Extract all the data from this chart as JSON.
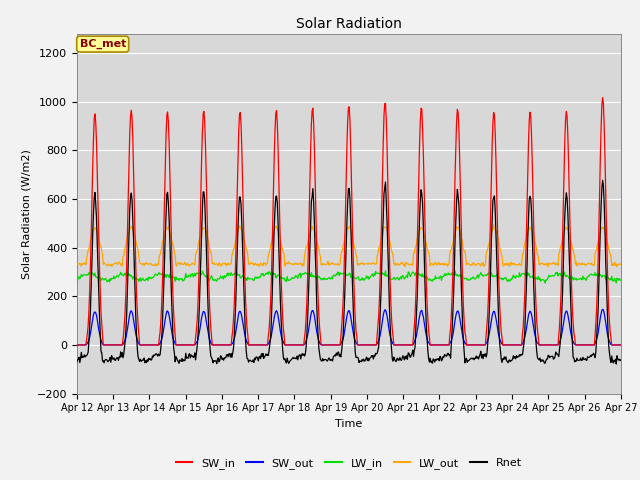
{
  "title": "Solar Radiation",
  "ylabel": "Solar Radiation (W/m2)",
  "xlabel": "Time",
  "ylim": [
    -200,
    1280
  ],
  "yticks": [
    -200,
    0,
    200,
    400,
    600,
    800,
    1000,
    1200
  ],
  "xtick_labels": [
    "Apr 12",
    "Apr 13",
    "Apr 14",
    "Apr 15",
    "Apr 16",
    "Apr 17",
    "Apr 18",
    "Apr 19",
    "Apr 20",
    "Apr 21",
    "Apr 22",
    "Apr 23",
    "Apr 24",
    "Apr 25",
    "Apr 26",
    "Apr 27"
  ],
  "plot_bg_color": "#d8d8d8",
  "fig_bg_color": "#f2f2f2",
  "grid_color": "#ffffff",
  "line_colors": {
    "SW_in": "#ff0000",
    "SW_out": "#0000ff",
    "LW_in": "#00dd00",
    "LW_out": "#ffa500",
    "Rnet": "#000000"
  },
  "legend_label_box": "BC_met",
  "legend_label_box_color": "#ffff99",
  "legend_label_box_border": "#aa8800"
}
